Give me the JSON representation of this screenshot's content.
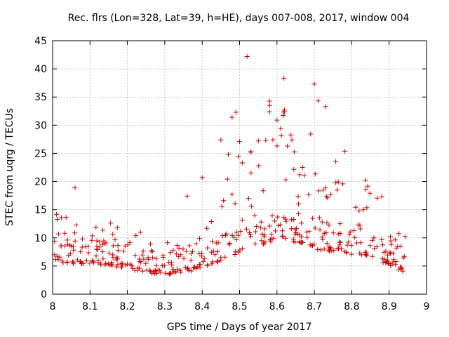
{
  "chart_data": {
    "type": "scatter",
    "title": "Rec. flrs (Lon=328, Lat=39, h=HE), days 007-008, 2017, window 004",
    "xlabel": "GPS time / Days of year 2017",
    "ylabel": "STEC from uqrg / TECUs",
    "xlim": [
      8,
      9
    ],
    "ylim": [
      0,
      45
    ],
    "xticks": [
      "8",
      "8.1",
      "8.2",
      "8.3",
      "8.4",
      "8.5",
      "8.6",
      "8.7",
      "8.8",
      "8.9",
      "9"
    ],
    "yticks": [
      "0",
      "5",
      "10",
      "15",
      "20",
      "25",
      "30",
      "35",
      "40",
      "45"
    ],
    "grid": true,
    "marker": "+",
    "color": "#cc0000",
    "series": [
      {
        "name": "STEC",
        "x": [
          8.52,
          8.7,
          8.71,
          8.73,
          8.58,
          8.49,
          8.48,
          8.6,
          8.61,
          8.62,
          8.58,
          8.45,
          8.57,
          8.5,
          8.55,
          8.64,
          8.53,
          8.47,
          8.06,
          8.36,
          8.4
        ],
        "y": [
          42.2,
          37.3,
          34.3,
          33.3,
          33.5,
          32.3,
          31.4,
          30.9,
          29.4,
          32.7,
          32.4,
          27.4,
          27.3,
          27.1,
          27.2,
          27.4,
          25.3,
          24.8,
          18.9,
          17.4,
          20.7
        ]
      }
    ]
  }
}
